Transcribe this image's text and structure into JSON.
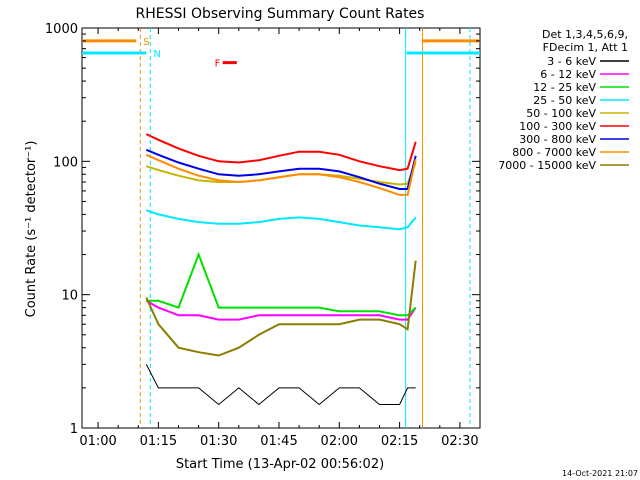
{
  "chart_data": {
    "type": "line",
    "title": "RHESSI Observing Summary Count Rates",
    "xlabel": "Start Time (13-Apr-02 00:56:02)",
    "ylabel": "Count Rate (s⁻¹ detector⁻¹)",
    "y_scale": "log",
    "ylim": [
      1,
      1000
    ],
    "xlim_minutes": [
      56.0,
      155.0
    ],
    "x_ticks": [
      {
        "label": "01:00",
        "minute": 60
      },
      {
        "label": "01:15",
        "minute": 75
      },
      {
        "label": "01:30",
        "minute": 90
      },
      {
        "label": "01:45",
        "minute": 105
      },
      {
        "label": "02:00",
        "minute": 120
      },
      {
        "label": "02:15",
        "minute": 135
      },
      {
        "label": "02:30",
        "minute": 150
      }
    ],
    "y_ticks": [
      {
        "label": "1",
        "value": 1
      },
      {
        "label": "10",
        "value": 10
      },
      {
        "label": "100",
        "value": 100
      },
      {
        "label": "1000",
        "value": 1000
      }
    ],
    "legend_header": [
      "Det 1,3,4,5,6,9,",
      "FDecim 1, Att 1"
    ],
    "legend_position": "right",
    "footer": "14-Oct-2021 21:07",
    "x": [
      72,
      75,
      80,
      85,
      90,
      95,
      100,
      105,
      110,
      115,
      120,
      125,
      130,
      135,
      137,
      139
    ],
    "series": [
      {
        "name": "3 - 6 keV",
        "color": "#000000",
        "values": [
          3,
          2,
          2,
          2,
          1.5,
          2,
          1.5,
          2,
          2,
          1.5,
          2,
          2,
          1.5,
          1.5,
          2,
          2
        ]
      },
      {
        "name": "6 - 12 keV",
        "color": "#ff00ff",
        "values": [
          9,
          8,
          7,
          7,
          6.5,
          6.5,
          7,
          7,
          7,
          7,
          7,
          7,
          7,
          6.5,
          6.5,
          8
        ]
      },
      {
        "name": "12 - 25 keV",
        "color": "#00e000",
        "values": [
          9,
          9,
          8,
          20,
          8,
          8,
          8,
          8,
          8,
          8,
          7.5,
          7.5,
          7.5,
          7,
          7,
          8
        ]
      },
      {
        "name": "25 - 50 keV",
        "color": "#00e8ff",
        "values": [
          43,
          40,
          37,
          35,
          34,
          34,
          35,
          37,
          38,
          37,
          35,
          33,
          32,
          31,
          32,
          38
        ]
      },
      {
        "name": "50 - 100 keV",
        "color": "#c8b400",
        "values": [
          92,
          86,
          78,
          72,
          70,
          70,
          72,
          76,
          80,
          80,
          78,
          74,
          70,
          67,
          68,
          98
        ]
      },
      {
        "name": "100 - 300 keV",
        "color": "#ff0000",
        "values": [
          160,
          145,
          125,
          110,
          100,
          98,
          102,
          110,
          118,
          118,
          112,
          100,
          92,
          86,
          88,
          140
        ]
      },
      {
        "name": "300 - 800 keV",
        "color": "#0000e8",
        "values": [
          122,
          112,
          98,
          88,
          80,
          78,
          80,
          84,
          88,
          88,
          84,
          76,
          68,
          62,
          62,
          110
        ]
      },
      {
        "name": "800 - 7000 keV",
        "color": "#ff8c00",
        "values": [
          112,
          102,
          88,
          78,
          72,
          70,
          72,
          76,
          80,
          80,
          76,
          70,
          63,
          56,
          56,
          104
        ]
      },
      {
        "name": "7000 - 15000 keV",
        "color": "#8b7d00",
        "values": [
          9.5,
          6,
          4,
          3.7,
          3.5,
          4,
          5,
          6,
          6,
          6,
          6,
          6.5,
          6.5,
          6,
          5.5,
          18
        ]
      }
    ],
    "annotations": [
      {
        "label": "S",
        "color": "#ff8c00",
        "minute": 70.5,
        "level": 800
      },
      {
        "label": "N",
        "color": "#00e8ff",
        "minute": 73.0,
        "level": 650
      },
      {
        "label": "F",
        "color": "#ff0000",
        "minute": 88.0,
        "level": 550
      }
    ],
    "vertical_lines": [
      {
        "color": "#ff8c00",
        "style": "dashed",
        "minute": 70.5
      },
      {
        "color": "#00e8ff",
        "style": "dashed",
        "minute": 73.0
      },
      {
        "color": "#00e8ff",
        "style": "solid",
        "minute": 136.5
      },
      {
        "color": "#ff8c00",
        "style": "solid",
        "minute": 140.7
      },
      {
        "color": "#00e8ff",
        "style": "dashed",
        "minute": 152.5
      }
    ]
  }
}
